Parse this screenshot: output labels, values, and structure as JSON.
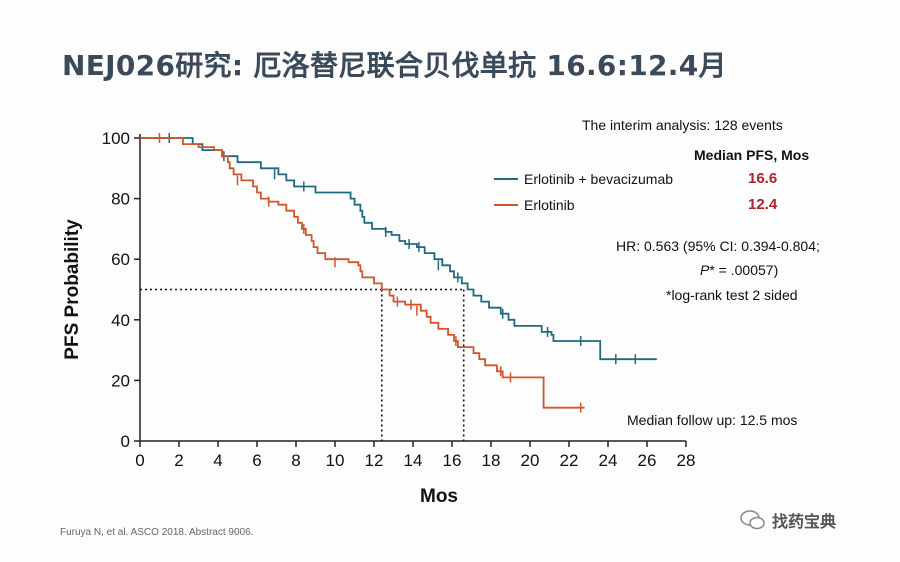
{
  "slide": {
    "title": "NEJ026研究: 厄洛替尼联合贝伐单抗 16.6:12.4月",
    "citation": "Furuya N, et al. ASCO 2018. Abstract 9006.",
    "watermark": "找药宝典"
  },
  "annotations": {
    "interim": "The interim analysis: 128 events",
    "median_header": "Median PFS, Mos",
    "hr": "HR: 0.563 (95% CI: 0.394-0.804;",
    "p_value_prefix": "P",
    "p_value_rest": "* = .00057)",
    "test_note": "*log-rank test 2 sided",
    "followup": "Median follow up: 12.5 mos"
  },
  "colors": {
    "combo": "#1f6a80",
    "mono": "#d4552a",
    "median_text": "#b0202a"
  },
  "chart_data": {
    "type": "line",
    "ylabel": "PFS Probability",
    "xlabel": "Mos",
    "xlim": [
      0,
      28
    ],
    "ylim": [
      0,
      100
    ],
    "x_ticks": [
      0,
      2,
      4,
      6,
      8,
      10,
      12,
      14,
      16,
      18,
      20,
      22,
      24,
      26,
      28
    ],
    "y_ticks": [
      0,
      20,
      40,
      60,
      80,
      100
    ],
    "median_line_y": 50,
    "series": [
      {
        "name": "Erlotinib + bevacizumab",
        "color": "#1f6a80",
        "median": 16.6,
        "median_label": "16.6",
        "points": [
          [
            0,
            100
          ],
          [
            1.6,
            100
          ],
          [
            2.7,
            98
          ],
          [
            3.2,
            96
          ],
          [
            4.2,
            94
          ],
          [
            5.0,
            92
          ],
          [
            6.2,
            90
          ],
          [
            7.1,
            88
          ],
          [
            7.5,
            86
          ],
          [
            7.9,
            84
          ],
          [
            9.0,
            82
          ],
          [
            10.8,
            80
          ],
          [
            11.0,
            78
          ],
          [
            11.3,
            76
          ],
          [
            11.4,
            74
          ],
          [
            11.5,
            72
          ],
          [
            11.9,
            70
          ],
          [
            12.6,
            69
          ],
          [
            12.9,
            68
          ],
          [
            13.3,
            66
          ],
          [
            13.6,
            65
          ],
          [
            14.2,
            64
          ],
          [
            14.6,
            62
          ],
          [
            15.1,
            60
          ],
          [
            15.5,
            58
          ],
          [
            15.9,
            56
          ],
          [
            16.1,
            54
          ],
          [
            16.5,
            52
          ],
          [
            16.8,
            50
          ],
          [
            17.1,
            48
          ],
          [
            17.5,
            46
          ],
          [
            17.9,
            44
          ],
          [
            18.5,
            42
          ],
          [
            18.9,
            40
          ],
          [
            19.2,
            38
          ],
          [
            20.6,
            36
          ],
          [
            21.1,
            35
          ],
          [
            21.2,
            33
          ],
          [
            23.5,
            33
          ],
          [
            23.6,
            27
          ],
          [
            26.5,
            27
          ]
        ],
        "censors": [
          [
            1.5,
            100
          ],
          [
            4.3,
            94
          ],
          [
            6.9,
            88
          ],
          [
            8.4,
            84
          ],
          [
            12.6,
            69
          ],
          [
            13.8,
            65
          ],
          [
            14.3,
            64
          ],
          [
            15.3,
            58
          ],
          [
            16.3,
            54
          ],
          [
            18.6,
            42
          ],
          [
            20.9,
            36
          ],
          [
            22.6,
            33
          ],
          [
            24.4,
            27
          ],
          [
            25.4,
            27
          ]
        ]
      },
      {
        "name": "Erlotinib",
        "color": "#d4552a",
        "median": 12.4,
        "median_label": "12.4",
        "points": [
          [
            0,
            100
          ],
          [
            1.6,
            100
          ],
          [
            2.2,
            98
          ],
          [
            3.0,
            97
          ],
          [
            3.8,
            96
          ],
          [
            4.2,
            94
          ],
          [
            4.5,
            92
          ],
          [
            4.6,
            90
          ],
          [
            4.8,
            88
          ],
          [
            5.2,
            86
          ],
          [
            5.8,
            84
          ],
          [
            6.0,
            82
          ],
          [
            6.2,
            80
          ],
          [
            6.6,
            79
          ],
          [
            7.1,
            78
          ],
          [
            7.5,
            76
          ],
          [
            7.9,
            74
          ],
          [
            8.1,
            72
          ],
          [
            8.3,
            70
          ],
          [
            8.5,
            68
          ],
          [
            8.8,
            66
          ],
          [
            8.9,
            64
          ],
          [
            9.1,
            62
          ],
          [
            9.5,
            60
          ],
          [
            10.7,
            59
          ],
          [
            11.2,
            58
          ],
          [
            11.3,
            56
          ],
          [
            11.4,
            54
          ],
          [
            12.0,
            52
          ],
          [
            12.4,
            50
          ],
          [
            12.8,
            48
          ],
          [
            13.0,
            46
          ],
          [
            13.6,
            45
          ],
          [
            14.4,
            43
          ],
          [
            14.7,
            41
          ],
          [
            14.9,
            39
          ],
          [
            15.3,
            37
          ],
          [
            15.8,
            35
          ],
          [
            16.1,
            33
          ],
          [
            16.3,
            31
          ],
          [
            17.1,
            29
          ],
          [
            17.4,
            27
          ],
          [
            17.7,
            25
          ],
          [
            18.3,
            23
          ],
          [
            18.6,
            21
          ],
          [
            20.6,
            21
          ],
          [
            20.7,
            11
          ],
          [
            22.8,
            11
          ]
        ],
        "censors": [
          [
            1.0,
            100
          ],
          [
            5.0,
            86
          ],
          [
            6.6,
            79
          ],
          [
            8.4,
            70
          ],
          [
            10.0,
            59
          ],
          [
            13.2,
            46
          ],
          [
            13.9,
            45
          ],
          [
            14.2,
            43
          ],
          [
            16.2,
            33
          ],
          [
            18.5,
            23
          ],
          [
            19.0,
            21
          ],
          [
            22.6,
            11
          ]
        ]
      }
    ]
  }
}
